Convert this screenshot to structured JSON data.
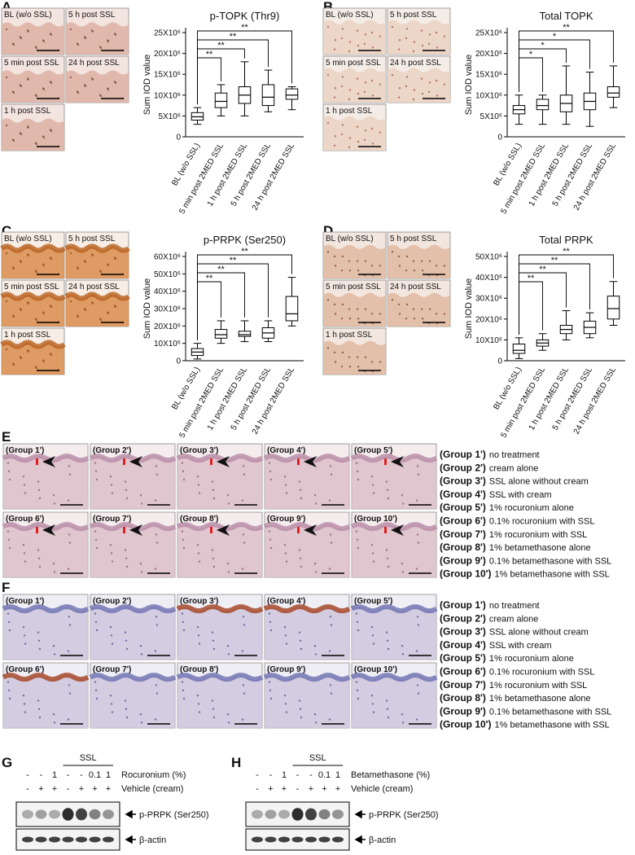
{
  "panels": [
    {
      "letter": "A",
      "images": [
        "BL (w/o SSL)",
        "5 h post SSL",
        "5 min post SSL",
        "24 h post SSL",
        "1 h post SSL"
      ],
      "chart": {
        "type": "box",
        "title": "p-TOPK (Thr9)",
        "y_label": "Sum IOD value",
        "categories": [
          "BL (w/o SSL)",
          "5 min post 2MED SSL",
          "1 h post 2MED SSL",
          "5 h post 2MED SSL",
          "24 h post 2MED SSL"
        ],
        "boxes": [
          {
            "min": 3000000,
            "q1": 4000000,
            "median": 4800000,
            "q3": 5800000,
            "max": 7000000
          },
          {
            "min": 5000000,
            "q1": 7000000,
            "median": 8500000,
            "q3": 10500000,
            "max": 12500000
          },
          {
            "min": 5000000,
            "q1": 8000000,
            "median": 10000000,
            "q3": 12000000,
            "max": 18000000
          },
          {
            "min": 6000000,
            "q1": 7500000,
            "median": 9500000,
            "q3": 12500000,
            "max": 16000000
          },
          {
            "min": 6500000,
            "q1": 9000000,
            "median": 10000000,
            "q3": 11500000,
            "max": 12000000
          }
        ],
        "ylim": [
          0,
          25000000
        ],
        "yticks": [
          0,
          {
            "value": 5000000,
            "label": "5X10⁶"
          },
          {
            "value": 10000000,
            "label": "10X10⁶"
          },
          {
            "value": 15000000,
            "label": "15X10⁶"
          },
          {
            "value": 20000000,
            "label": "20X10⁶"
          },
          {
            "value": 25000000,
            "label": "25X10⁶"
          }
        ],
        "significance": [
          "**",
          "**",
          "**",
          "**"
        ]
      }
    },
    {
      "letter": "B",
      "images": [
        "BL (w/o SSL)",
        "5 h post SSL",
        "5 min post SSL",
        "24 h post SSL",
        "1 h post SSL"
      ],
      "chart": {
        "type": "box",
        "title": "Total TOPK",
        "y_label": "Sum IOD value",
        "categories": [
          "BL (w/o SSL)",
          "5 min post 2MED SSL",
          "1 h post 2MED SSL",
          "5 h post 2MED SSL",
          "24 h post 2MED SSL"
        ],
        "boxes": [
          {
            "min": 3000000,
            "q1": 5500000,
            "median": 6500000,
            "q3": 7500000,
            "max": 10000000
          },
          {
            "min": 3000000,
            "q1": 6500000,
            "median": 7500000,
            "q3": 9000000,
            "max": 10000000
          },
          {
            "min": 3000000,
            "q1": 6000000,
            "median": 8000000,
            "q3": 10000000,
            "max": 17000000
          },
          {
            "min": 2500000,
            "q1": 6500000,
            "median": 8500000,
            "q3": 10500000,
            "max": 15500000
          },
          {
            "min": 7000000,
            "q1": 9500000,
            "median": 10500000,
            "q3": 12000000,
            "max": 17000000
          }
        ],
        "ylim": [
          0,
          25000000
        ],
        "yticks": [
          0,
          {
            "value": 5000000,
            "label": "5X10⁶"
          },
          {
            "value": 10000000,
            "label": "10X10⁶"
          },
          {
            "value": 15000000,
            "label": "15X10⁶"
          },
          {
            "value": 20000000,
            "label": "20X10⁶"
          },
          {
            "value": 25000000,
            "label": "25X10⁶"
          }
        ],
        "significance": [
          "*",
          "*",
          "*",
          "**"
        ]
      }
    },
    {
      "letter": "C",
      "images": [
        "BL (w/o SSL)",
        "5 h post SSL",
        "5 min post SSL",
        "24 h post SSL",
        "1 h post SSL"
      ],
      "chart": {
        "type": "box",
        "title": "p-PRPK (Ser250)",
        "y_label": "Sum IOD value",
        "categories": [
          "BL (w/o SSL)",
          "5 min post 2MED SSL",
          "1 h post 2MED SSL",
          "5 h post 2MED SSL",
          "24 h post 2MED SSL"
        ],
        "boxes": [
          {
            "min": 1000000,
            "q1": 3000000,
            "median": 5000000,
            "q3": 7000000,
            "max": 10000000
          },
          {
            "min": 10000000,
            "q1": 13000000,
            "median": 15000000,
            "q3": 18000000,
            "max": 23000000
          },
          {
            "min": 11000000,
            "q1": 14000000,
            "median": 15000000,
            "q3": 17000000,
            "max": 23000000
          },
          {
            "min": 11000000,
            "q1": 13000000,
            "median": 16000000,
            "q3": 19000000,
            "max": 23000000
          },
          {
            "min": 20000000,
            "q1": 23000000,
            "median": 27000000,
            "q3": 37000000,
            "max": 48000000
          }
        ],
        "ylim": [
          0,
          60000000
        ],
        "yticks": [
          0,
          {
            "value": 10000000,
            "label": "10X10⁶"
          },
          {
            "value": 20000000,
            "label": "20X10⁶"
          },
          {
            "value": 30000000,
            "label": "30X10⁶"
          },
          {
            "value": 40000000,
            "label": "40X10⁶"
          },
          {
            "value": 50000000,
            "label": "50X10⁶"
          },
          {
            "value": 60000000,
            "label": "60X10⁶"
          }
        ],
        "significance": [
          "**",
          "**",
          "**",
          "**"
        ]
      }
    },
    {
      "letter": "D",
      "images": [
        "BL (w/o SSL)",
        "5 h post SSL",
        "5 min post SSL",
        "24 h post SSL",
        "1 h post SSL"
      ],
      "chart": {
        "type": "box",
        "title": "Total PRPK",
        "y_label": "Sum IOD value",
        "categories": [
          "BL (w/o SSL)",
          "5 min post 2MED SSL",
          "1 h post 2MED SSL",
          "5 h post 2MED SSL",
          "24 h post 2MED SSL"
        ],
        "boxes": [
          {
            "min": 1000000,
            "q1": 3500000,
            "median": 5000000,
            "q3": 8000000,
            "max": 11000000
          },
          {
            "min": 5000000,
            "q1": 7000000,
            "median": 8500000,
            "q3": 10000000,
            "max": 13000000
          },
          {
            "min": 10000000,
            "q1": 13000000,
            "median": 15000000,
            "q3": 17000000,
            "max": 24000000
          },
          {
            "min": 11000000,
            "q1": 13000000,
            "median": 16000000,
            "q3": 19000000,
            "max": 23000000
          },
          {
            "min": 17000000,
            "q1": 20000000,
            "median": 25000000,
            "q3": 31000000,
            "max": 38000000
          }
        ],
        "ylim": [
          0,
          50000000
        ],
        "yticks": [
          0,
          {
            "value": 10000000,
            "label": "10X10⁶"
          },
          {
            "value": 20000000,
            "label": "20X10⁶"
          },
          {
            "value": 30000000,
            "label": "30X10⁶"
          },
          {
            "value": 40000000,
            "label": "40X10⁶"
          },
          {
            "value": 50000000,
            "label": "50X10⁶"
          }
        ],
        "significance": [
          "**",
          "**",
          "**",
          "**"
        ]
      }
    }
  ],
  "histology": [
    {
      "letter": "E",
      "images": [
        "(Group 1')",
        "(Group 2')",
        "(Group 3')",
        "(Group 4')",
        "(Group 5')",
        "(Group 6')",
        "(Group 7')",
        "(Group 8')",
        "(Group 9')",
        "(Group 10')"
      ],
      "legend": [
        {
          "group": "(Group 1')",
          "text": "no treatment"
        },
        {
          "group": "(Group 2')",
          "text": "cream alone"
        },
        {
          "group": "(Group 3')",
          "text": "SSL alone without cream"
        },
        {
          "group": "(Group 4')",
          "text": "SSL with cream"
        },
        {
          "group": "(Group 5')",
          "text": "1% rocuronium alone"
        },
        {
          "group": "(Group 6')",
          "text": "0.1% rocuronium with SSL"
        },
        {
          "group": "(Group 7')",
          "text": "1% rocuronium with SSL"
        },
        {
          "group": "(Group 8')",
          "text": "1% betamethasone alone"
        },
        {
          "group": "(Group 9')",
          "text": "0.1% betamethasone with SSL"
        },
        {
          "group": "(Group 10')",
          "text": "1% betamethasone with SSL"
        }
      ]
    },
    {
      "letter": "F",
      "images": [
        "(Group 1')",
        "(Group 2')",
        "(Group 3')",
        "(Group 4')",
        "(Group 5')",
        "(Group 6')",
        "(Group 7')",
        "(Group 8')",
        "(Group 9')",
        "(Group 10')"
      ],
      "legend": [
        {
          "group": "(Group 1')",
          "text": "no treatment"
        },
        {
          "group": "(Group 2')",
          "text": "cream alone"
        },
        {
          "group": "(Group 3')",
          "text": "SSL alone without cream"
        },
        {
          "group": "(Group 4')",
          "text": "SSL with cream"
        },
        {
          "group": "(Group 5')",
          "text": "1% rocuronium alone"
        },
        {
          "group": "(Group 6')",
          "text": "0.1% rocuronium with SSL"
        },
        {
          "group": "(Group 7')",
          "text": "1% rocuronium with SSL"
        },
        {
          "group": "(Group 8')",
          "text": "1% betamethasone alone"
        },
        {
          "group": "(Group 9')",
          "text": "0.1% betamethasone with SSL"
        },
        {
          "group": "(Group 10')",
          "text": "1% betamethasone with SSL"
        }
      ]
    }
  ],
  "blots": [
    {
      "letter": "G",
      "header": "SSL",
      "rows": [
        {
          "label": "Rocuronium (%)",
          "values": [
            "-",
            "-",
            "1",
            "-",
            "-",
            "0.1",
            "1"
          ]
        },
        {
          "label": "Vehicle (cream)",
          "values": [
            "-",
            "+",
            "+",
            "-",
            "+",
            "+",
            "+"
          ]
        }
      ],
      "bands": [
        "p-PRPK (Ser250)",
        "β-actin"
      ]
    },
    {
      "letter": "H",
      "header": "SSL",
      "rows": [
        {
          "label": "Betamethasone (%)",
          "values": [
            "-",
            "-",
            "1",
            "-",
            "-",
            "0.1",
            "1"
          ]
        },
        {
          "label": "Vehicle (cream)",
          "values": [
            "-",
            "+",
            "+",
            "-",
            "+",
            "+",
            "+"
          ]
        }
      ],
      "bands": [
        "p-PRPK (Ser250)",
        "β-actin"
      ]
    }
  ]
}
